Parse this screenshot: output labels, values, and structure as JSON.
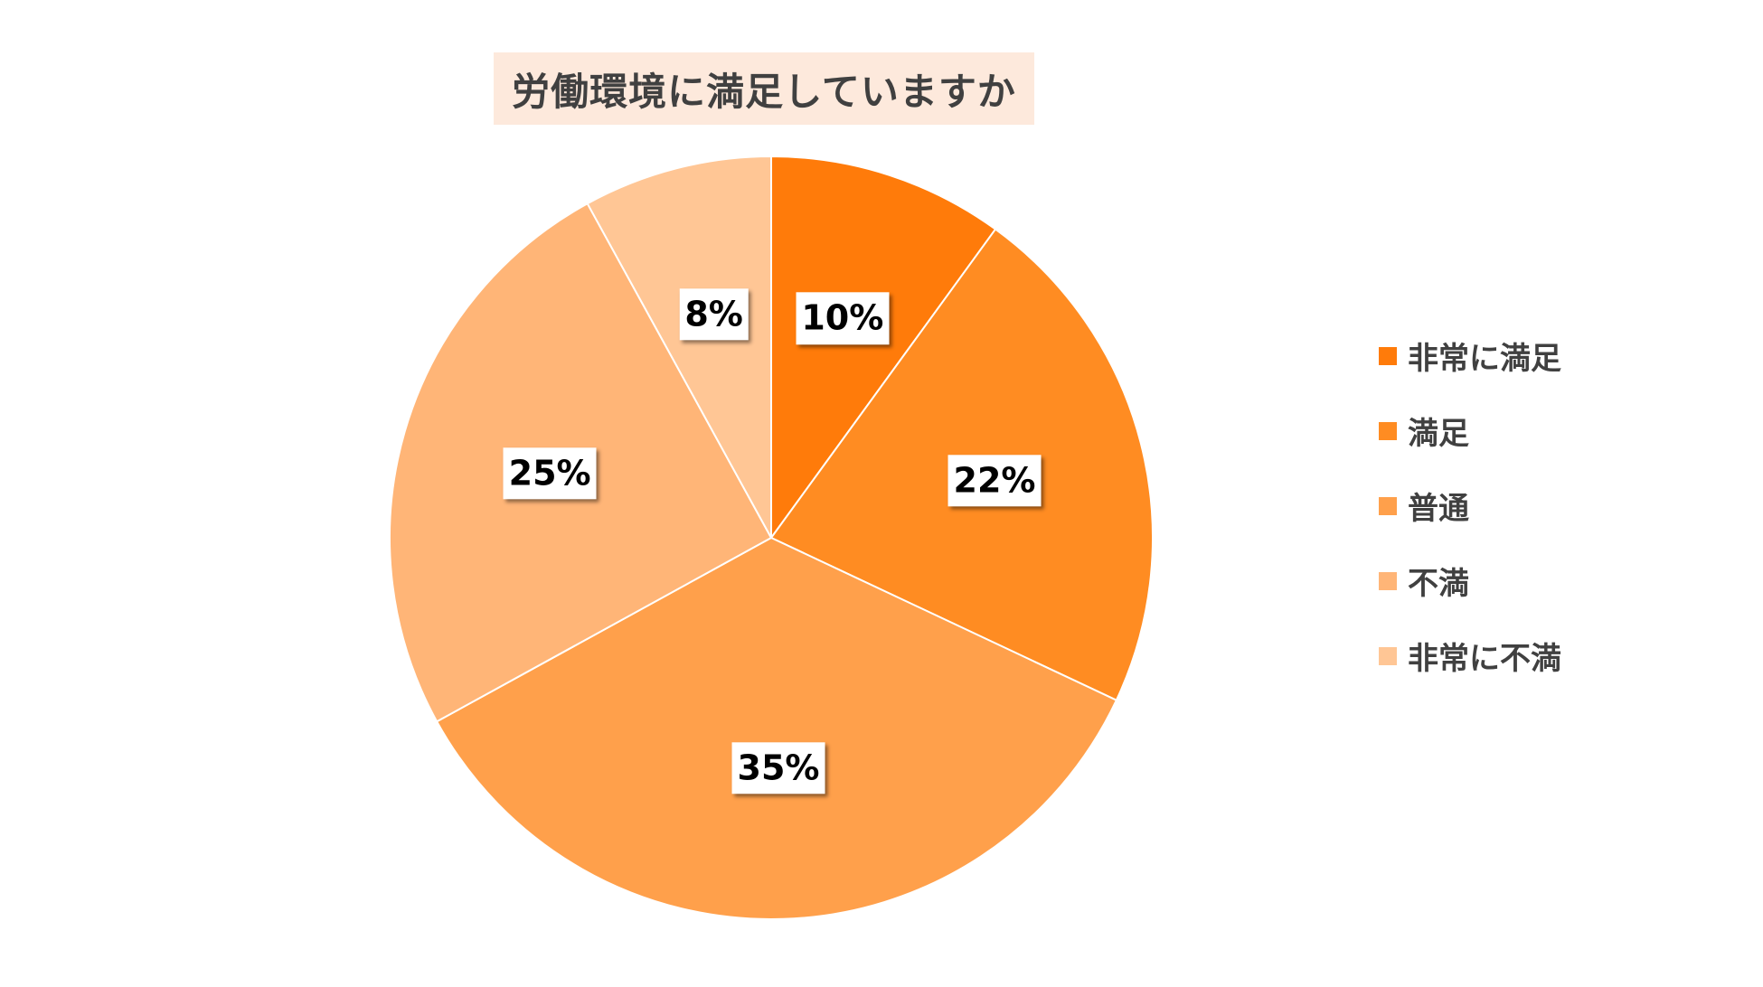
{
  "chart_data": {
    "type": "pie",
    "title": "労働環境に満足していますか",
    "categories": [
      "非常に満足",
      "満足",
      "普通",
      "不満",
      "非常に不満"
    ],
    "values": [
      10,
      22,
      35,
      25,
      8
    ],
    "labels": [
      "10%",
      "22%",
      "35%",
      "25%",
      "8%"
    ],
    "colors": [
      "#ff7b0a",
      "#ff8c22",
      "#ffa04b",
      "#ffb577",
      "#ffc695"
    ],
    "start_angle": "12 o'clock",
    "direction": "clockwise",
    "legend_position": "right"
  }
}
